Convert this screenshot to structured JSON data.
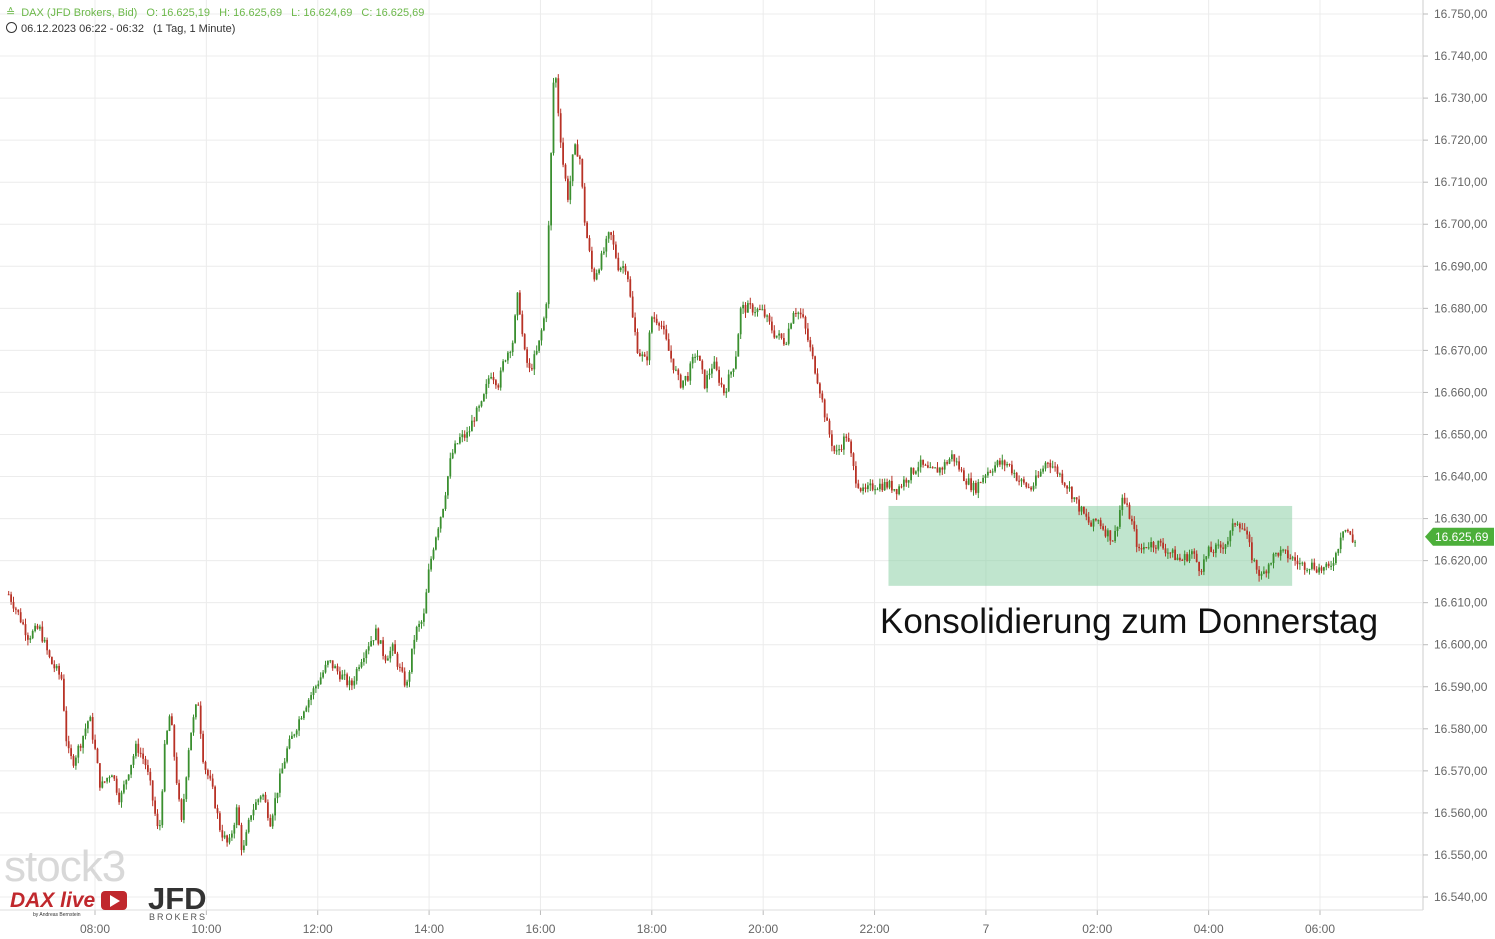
{
  "header": {
    "instrument": "DAX (JFD Brokers, Bid)",
    "open": "O: 16.625,19",
    "high": "H: 16.625,69",
    "low": "L: 16.624,69",
    "close": "C: 16.625,69",
    "range": "06.12.2023 06:22 - 06:32",
    "period": "(1 Tag, 1 Minute)"
  },
  "annotation": "Konsolidierung zum Donnerstag",
  "current_price_label": "16.625,69",
  "logos": {
    "stock3": "stock3",
    "daxlive": "DAX live",
    "daxlive_sub": "by Andreas Bernstein",
    "jfd": "JFD",
    "jfd_sub": "BROKERS"
  },
  "colors": {
    "up": "#3a8f2f",
    "down": "#b83226",
    "zone": "#8ccfa6",
    "price_tag": "#4caf3a",
    "header_text": "#6cb84a"
  },
  "chart_data": {
    "type": "candlestick",
    "ylim": [
      16535,
      16755
    ],
    "yticks": [
      "16.540,00",
      "16.550,00",
      "16.560,00",
      "16.570,00",
      "16.580,00",
      "16.590,00",
      "16.600,00",
      "16.610,00",
      "16.620,00",
      "16.630,00",
      "16.640,00",
      "16.650,00",
      "16.660,00",
      "16.670,00",
      "16.680,00",
      "16.690,00",
      "16.700,00",
      "16.710,00",
      "16.720,00",
      "16.730,00",
      "16.740,00",
      "16.750,00"
    ],
    "xticks": [
      "08:00",
      "10:00",
      "12:00",
      "14:00",
      "16:00",
      "18:00",
      "20:00",
      "22:00",
      "7",
      "02:00",
      "04:00",
      "06:00"
    ],
    "x_hours": [
      8,
      10,
      12,
      14,
      16,
      18,
      20,
      22,
      24,
      26,
      28,
      30
    ],
    "x_range_hours": [
      6.4,
      31.75
    ],
    "series_path": [
      [
        6.45,
        16612
      ],
      [
        6.6,
        16608
      ],
      [
        6.8,
        16602
      ],
      [
        7.0,
        16604
      ],
      [
        7.2,
        16596
      ],
      [
        7.4,
        16592
      ],
      [
        7.5,
        16575
      ],
      [
        7.6,
        16572
      ],
      [
        7.75,
        16577
      ],
      [
        7.9,
        16583
      ],
      [
        8.0,
        16575
      ],
      [
        8.1,
        16566
      ],
      [
        8.3,
        16570
      ],
      [
        8.45,
        16563
      ],
      [
        8.6,
        16570
      ],
      [
        8.75,
        16576
      ],
      [
        8.9,
        16572
      ],
      [
        9.0,
        16566
      ],
      [
        9.1,
        16558
      ],
      [
        9.15,
        16554
      ],
      [
        9.25,
        16575
      ],
      [
        9.35,
        16584
      ],
      [
        9.45,
        16570
      ],
      [
        9.55,
        16557
      ],
      [
        9.7,
        16578
      ],
      [
        9.85,
        16587
      ],
      [
        9.95,
        16572
      ],
      [
        10.1,
        16566
      ],
      [
        10.25,
        16556
      ],
      [
        10.4,
        16552
      ],
      [
        10.55,
        16561
      ],
      [
        10.65,
        16550
      ],
      [
        10.8,
        16560
      ],
      [
        11.0,
        16565
      ],
      [
        11.15,
        16558
      ],
      [
        11.3,
        16567
      ],
      [
        11.45,
        16575
      ],
      [
        11.6,
        16580
      ],
      [
        11.75,
        16585
      ],
      [
        12.0,
        16591
      ],
      [
        12.2,
        16596
      ],
      [
        12.4,
        16593
      ],
      [
        12.6,
        16590
      ],
      [
        12.75,
        16596
      ],
      [
        12.9,
        16600
      ],
      [
        13.05,
        16603
      ],
      [
        13.2,
        16597
      ],
      [
        13.35,
        16599
      ],
      [
        13.5,
        16593
      ],
      [
        13.6,
        16590
      ],
      [
        13.75,
        16603
      ],
      [
        13.9,
        16606
      ],
      [
        14.0,
        16618
      ],
      [
        14.1,
        16625
      ],
      [
        14.25,
        16633
      ],
      [
        14.4,
        16645
      ],
      [
        14.55,
        16649
      ],
      [
        14.7,
        16650
      ],
      [
        14.8,
        16654
      ],
      [
        14.95,
        16657
      ],
      [
        15.1,
        16665
      ],
      [
        15.25,
        16662
      ],
      [
        15.35,
        16668
      ],
      [
        15.5,
        16672
      ],
      [
        15.6,
        16684
      ],
      [
        15.7,
        16670
      ],
      [
        15.8,
        16665
      ],
      [
        15.95,
        16670
      ],
      [
        16.1,
        16680
      ],
      [
        16.15,
        16700
      ],
      [
        16.25,
        16740
      ],
      [
        16.3,
        16730
      ],
      [
        16.4,
        16715
      ],
      [
        16.5,
        16706
      ],
      [
        16.6,
        16718
      ],
      [
        16.7,
        16717
      ],
      [
        16.8,
        16700
      ],
      [
        16.95,
        16687
      ],
      [
        17.1,
        16692
      ],
      [
        17.25,
        16698
      ],
      [
        17.4,
        16690
      ],
      [
        17.55,
        16690
      ],
      [
        17.65,
        16678
      ],
      [
        17.75,
        16670
      ],
      [
        17.9,
        16667
      ],
      [
        18.0,
        16678
      ],
      [
        18.15,
        16677
      ],
      [
        18.3,
        16670
      ],
      [
        18.5,
        16662
      ],
      [
        18.65,
        16664
      ],
      [
        18.8,
        16670
      ],
      [
        18.95,
        16662
      ],
      [
        19.1,
        16667
      ],
      [
        19.3,
        16660
      ],
      [
        19.5,
        16668
      ],
      [
        19.6,
        16680
      ],
      [
        19.8,
        16680
      ],
      [
        20.0,
        16679
      ],
      [
        20.2,
        16674
      ],
      [
        20.4,
        16672
      ],
      [
        20.55,
        16680
      ],
      [
        20.7,
        16678
      ],
      [
        20.85,
        16670
      ],
      [
        21.0,
        16662
      ],
      [
        21.15,
        16652
      ],
      [
        21.3,
        16645
      ],
      [
        21.5,
        16650
      ],
      [
        21.65,
        16640
      ],
      [
        21.8,
        16636
      ],
      [
        22.0,
        16638
      ],
      [
        22.25,
        16638
      ],
      [
        22.4,
        16637
      ],
      [
        22.6,
        16640
      ],
      [
        22.8,
        16643
      ],
      [
        23.0,
        16641
      ],
      [
        23.2,
        16642
      ],
      [
        23.4,
        16645
      ],
      [
        23.6,
        16640
      ],
      [
        23.8,
        16637
      ],
      [
        24.0,
        16641
      ],
      [
        24.2,
        16643
      ],
      [
        24.4,
        16643
      ],
      [
        24.6,
        16639
      ],
      [
        24.8,
        16637
      ],
      [
        24.95,
        16640
      ],
      [
        25.1,
        16644
      ],
      [
        25.3,
        16641
      ],
      [
        25.5,
        16637
      ],
      [
        25.7,
        16632
      ],
      [
        25.9,
        16628
      ],
      [
        26.0,
        16630
      ],
      [
        26.15,
        16627
      ],
      [
        26.3,
        16625
      ],
      [
        26.45,
        16635
      ],
      [
        26.6,
        16630
      ],
      [
        26.75,
        16622
      ],
      [
        26.9,
        16624
      ],
      [
        27.1,
        16624
      ],
      [
        27.3,
        16622
      ],
      [
        27.5,
        16620
      ],
      [
        27.7,
        16622
      ],
      [
        27.85,
        16618
      ],
      [
        28.0,
        16622
      ],
      [
        28.2,
        16623
      ],
      [
        28.35,
        16625
      ],
      [
        28.5,
        16630
      ],
      [
        28.65,
        16627
      ],
      [
        28.8,
        16620
      ],
      [
        28.95,
        16616
      ],
      [
        29.1,
        16620
      ],
      [
        29.25,
        16622
      ],
      [
        29.45,
        16621
      ],
      [
        29.65,
        16619
      ],
      [
        29.85,
        16619
      ],
      [
        30.0,
        16618
      ],
      [
        30.15,
        16618
      ],
      [
        30.3,
        16622
      ],
      [
        30.4,
        16628
      ],
      [
        30.5,
        16627
      ],
      [
        30.6,
        16624
      ],
      [
        30.65,
        16625.69
      ]
    ],
    "zone": {
      "x_start_hours": 22.25,
      "x_end_hours": 29.5,
      "y_low": 16614,
      "y_high": 16633
    },
    "last_value": 16625.69
  }
}
